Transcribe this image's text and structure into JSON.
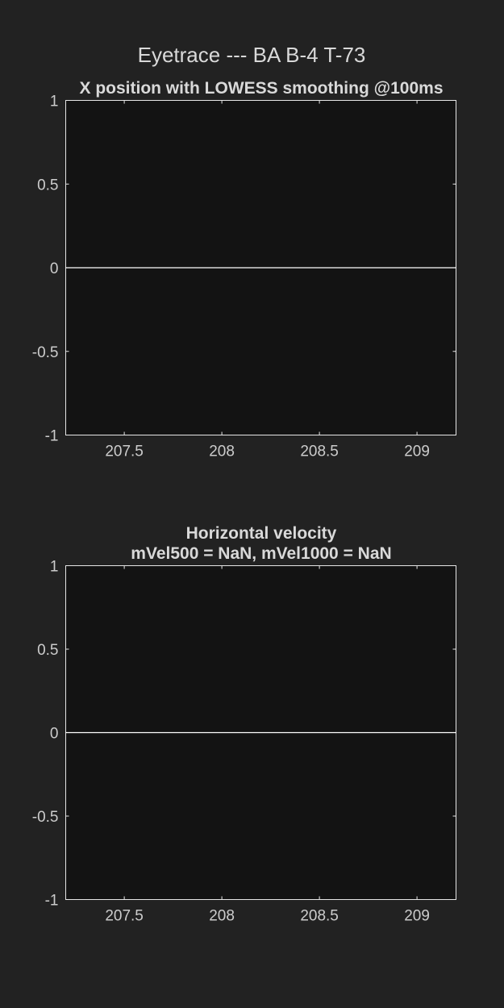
{
  "figure_title": "Eyetrace --- BA B-4 T-73",
  "chart_data": [
    {
      "type": "line",
      "title": "X position with LOWESS smoothing @100ms",
      "subtitle": "",
      "xlabel": "",
      "ylabel": "",
      "xlim": [
        207.2,
        209.2
      ],
      "ylim": [
        -1,
        1
      ],
      "xticks": [
        207.5,
        208,
        208.5,
        209
      ],
      "xtick_labels": [
        "207.5",
        "208",
        "208.5",
        "209"
      ],
      "yticks": [
        1,
        0.5,
        0,
        -0.5,
        -1
      ],
      "ytick_labels": [
        "1",
        "0.5",
        "0",
        "-0.5",
        "-1"
      ],
      "grid": false,
      "series": [
        {
          "x": [
            207.2,
            209.2
          ],
          "y": [
            0,
            0
          ],
          "color": "#ffffff"
        }
      ]
    },
    {
      "type": "line",
      "title": "Horizontal velocity",
      "subtitle": "mVel500 = NaN, mVel1000 = NaN",
      "xlabel": "",
      "ylabel": "",
      "xlim": [
        207.2,
        209.2
      ],
      "ylim": [
        -1,
        1
      ],
      "xticks": [
        207.5,
        208,
        208.5,
        209
      ],
      "xtick_labels": [
        "207.5",
        "208",
        "208.5",
        "209"
      ],
      "yticks": [
        1,
        0.5,
        0,
        -0.5,
        -1
      ],
      "ytick_labels": [
        "1",
        "0.5",
        "0",
        "-0.5",
        "-1"
      ],
      "grid": false,
      "series": [
        {
          "x": [
            207.2,
            209.2
          ],
          "y": [
            0,
            0
          ],
          "color": "#ffffff"
        }
      ]
    }
  ]
}
